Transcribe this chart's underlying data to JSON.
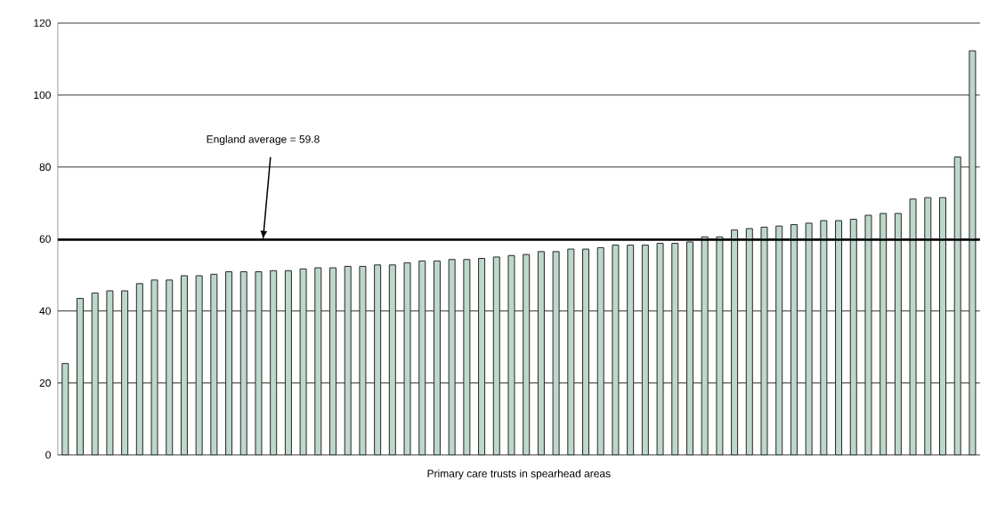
{
  "chart_data": {
    "type": "bar",
    "xlabel": "Primary care trusts in spearhead areas",
    "categories": [
      null,
      null,
      null,
      null,
      null,
      null,
      null,
      null,
      null,
      null,
      null,
      null,
      null,
      null,
      null,
      null,
      null,
      null,
      null,
      null,
      null,
      null,
      null,
      null,
      null,
      null,
      null,
      null,
      null,
      null,
      null,
      null,
      null,
      null,
      null,
      null,
      null,
      null,
      null,
      null,
      null,
      null,
      null,
      null,
      null,
      null,
      null,
      null,
      null,
      null,
      null,
      null,
      null,
      null,
      null,
      null,
      null,
      null,
      null,
      null,
      null,
      null
    ],
    "values": [
      25.4,
      43.5,
      45.0,
      45.6,
      45.6,
      47.6,
      48.6,
      48.6,
      49.8,
      49.8,
      50.2,
      50.9,
      50.9,
      50.9,
      51.2,
      51.2,
      51.7,
      52.0,
      52.0,
      52.4,
      52.4,
      52.8,
      52.8,
      53.4,
      53.9,
      53.9,
      54.3,
      54.3,
      54.6,
      55.0,
      55.4,
      55.7,
      56.5,
      56.5,
      57.2,
      57.2,
      57.6,
      58.3,
      58.3,
      58.3,
      58.8,
      58.8,
      59.2,
      60.6,
      60.6,
      62.5,
      62.9,
      63.3,
      63.6,
      64.0,
      64.4,
      65.1,
      65.1,
      65.5,
      66.6,
      67.1,
      67.1,
      71.1,
      71.5,
      71.5,
      82.8,
      112.3
    ],
    "color": "#bdd7c9",
    "ylim": [
      0,
      120
    ],
    "yticks": [
      0,
      20,
      40,
      60,
      80,
      100,
      120
    ],
    "grid": "y",
    "ref_lines": [
      {
        "axis": "y",
        "value": 59.8,
        "label": "England average = 59.8",
        "color": "#000000"
      }
    ]
  }
}
